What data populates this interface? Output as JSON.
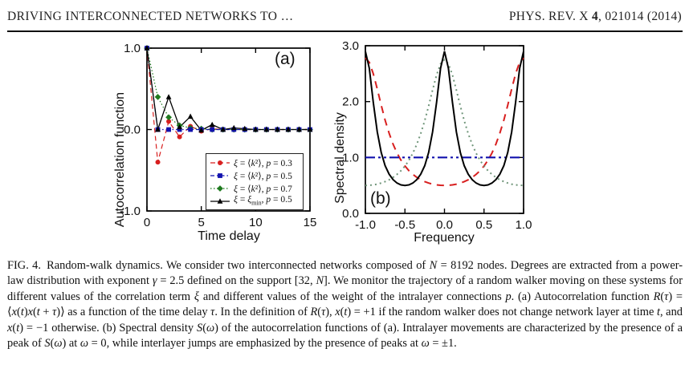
{
  "header": {
    "running_title": "DRIVING INTERCONNECTED NETWORKS TO …",
    "journal": {
      "pre": "PHYS. REV. X ",
      "volume": "4",
      "post": ", 021014 (2014)"
    }
  },
  "colors": {
    "red": "#d81f1f",
    "blue": "#1212ae",
    "green": "#1f7a1f",
    "green_dotted": "#6f9579",
    "black": "#000000"
  },
  "chart_data": [
    {
      "id": "autocorrelation",
      "type": "line",
      "panel_label": "(a)",
      "xlabel": "Time delay",
      "ylabel": "Autocorrelation function",
      "xlim": [
        0,
        15
      ],
      "ylim": [
        -1,
        1
      ],
      "grid": false,
      "legend_position": "bottom-right",
      "xticks": [
        {
          "v": 0,
          "l": "0"
        },
        {
          "v": 5,
          "l": "5"
        },
        {
          "v": 10,
          "l": "10"
        },
        {
          "v": 15,
          "l": "15"
        }
      ],
      "yticks": [
        {
          "v": -1,
          "l": "-1.0"
        },
        {
          "v": 0,
          "l": "0.0"
        },
        {
          "v": 1,
          "l": "1.0"
        }
      ],
      "x": [
        0,
        1,
        2,
        3,
        4,
        5,
        6,
        7,
        8,
        9,
        10,
        11,
        12,
        13,
        14,
        15
      ],
      "series": [
        {
          "name": "*ξ* = ⟨*k*²⟩, *p* = 0.3",
          "color_key": "red",
          "marker": "circle",
          "dash": "6 4",
          "width": 1.2,
          "values": [
            1.0,
            -0.4,
            0.1,
            -0.09,
            0.04,
            -0.02,
            0.01,
            0,
            0,
            0,
            0,
            0,
            0,
            0,
            0,
            0
          ]
        },
        {
          "name": "*ξ* = ⟨*k*²⟩, *p* = 0.5",
          "color_key": "blue",
          "marker": "square",
          "dash": "5 3 1.5 3",
          "width": 1.2,
          "values": [
            1.0,
            0,
            0,
            0,
            0,
            0,
            0,
            0,
            0,
            0,
            0,
            0,
            0,
            0,
            0,
            0
          ]
        },
        {
          "name": "*ξ* = ⟨*k*²⟩, *p* = 0.7",
          "color_key": "green",
          "marker": "diamond",
          "dash": "1.5 2.5",
          "width": 1.2,
          "values": [
            1.0,
            0.4,
            0.15,
            0.05,
            0.02,
            0.01,
            0,
            0,
            0,
            0,
            0,
            0,
            0,
            0,
            0,
            0
          ]
        },
        {
          "name": "*ξ* = *ξ*_min_, *p* = 0.5",
          "color_key": "black",
          "marker": "triangle",
          "dash": null,
          "width": 1.3,
          "values": [
            1.0,
            0.0,
            0.4,
            0.03,
            0.16,
            -0.01,
            0.06,
            0.0,
            0.02,
            0.01,
            0,
            0,
            0,
            0,
            0,
            0
          ]
        }
      ]
    },
    {
      "id": "spectral-density",
      "type": "line",
      "panel_label": "(b)",
      "xlabel": "Frequency",
      "ylabel": "Spectral density",
      "xlim": [
        -1,
        1
      ],
      "ylim": [
        0,
        3
      ],
      "grid": false,
      "xticks": [
        {
          "v": -1,
          "l": "-1.0"
        },
        {
          "v": -0.5,
          "l": "-0.5"
        },
        {
          "v": 0,
          "l": "0.0"
        },
        {
          "v": 0.5,
          "l": "0.5"
        },
        {
          "v": 1,
          "l": "1.0"
        }
      ],
      "yticks": [
        {
          "v": 0,
          "l": "0.0"
        },
        {
          "v": 1,
          "l": "1.0"
        },
        {
          "v": 2,
          "l": "2.0"
        },
        {
          "v": 3,
          "l": "3.0"
        }
      ],
      "x": [
        -1,
        -0.95,
        -0.9,
        -0.85,
        -0.8,
        -0.75,
        -0.7,
        -0.65,
        -0.6,
        -0.55,
        -0.5,
        -0.45,
        -0.4,
        -0.35,
        -0.3,
        -0.25,
        -0.2,
        -0.15,
        -0.1,
        -0.05,
        0,
        0.05,
        0.1,
        0.15,
        0.2,
        0.25,
        0.3,
        0.35,
        0.4,
        0.45,
        0.5,
        0.55,
        0.6,
        0.65,
        0.7,
        0.75,
        0.8,
        0.85,
        0.9,
        0.95,
        1
      ],
      "series": [
        {
          "name": "*ξ* = ⟨*k*²⟩, *p* = 0.3",
          "color_key": "red",
          "marker": null,
          "dash": "9 7",
          "width": 2,
          "values": [
            2.78,
            2.704,
            2.501,
            2.227,
            1.937,
            1.667,
            1.433,
            1.238,
            1.079,
            0.951,
            0.848,
            0.764,
            0.698,
            0.644,
            0.602,
            0.568,
            0.543,
            0.523,
            0.51,
            0.503,
            0.5,
            0.503,
            0.51,
            0.523,
            0.543,
            0.568,
            0.602,
            0.644,
            0.698,
            0.764,
            0.848,
            0.951,
            1.079,
            1.238,
            1.433,
            1.667,
            1.937,
            2.227,
            2.501,
            2.704,
            2.78
          ]
        },
        {
          "name": "*ξ* = ⟨*k*²⟩, *p* = 0.5",
          "color_key": "blue",
          "marker": null,
          "dash": "12 4 3 4 3 4",
          "width": 2.2,
          "values": [
            1,
            1,
            1,
            1,
            1,
            1,
            1,
            1,
            1,
            1,
            1,
            1,
            1,
            1,
            1,
            1,
            1,
            1,
            1,
            1,
            1,
            1,
            1,
            1,
            1,
            1,
            1,
            1,
            1,
            1,
            1,
            1,
            1,
            1,
            1,
            1,
            1,
            1,
            1,
            1,
            1
          ]
        },
        {
          "name": "*ξ* = ⟨*k*²⟩, *p* = 0.7",
          "color_key": "green_dotted",
          "marker": null,
          "dash": "2 4",
          "width": 2,
          "values": [
            0.5,
            0.503,
            0.51,
            0.523,
            0.542,
            0.568,
            0.601,
            0.644,
            0.697,
            0.763,
            0.846,
            0.949,
            1.076,
            1.234,
            1.427,
            1.658,
            1.923,
            2.208,
            2.477,
            2.676,
            2.75,
            2.676,
            2.477,
            2.208,
            1.923,
            1.658,
            1.427,
            1.234,
            1.076,
            0.949,
            0.846,
            0.763,
            0.697,
            0.644,
            0.601,
            0.568,
            0.542,
            0.523,
            0.51,
            0.503,
            0.5
          ]
        },
        {
          "name": "*ξ* = *ξ*_min_, *p* = 0.5",
          "color_key": "black",
          "marker": null,
          "dash": null,
          "width": 2,
          "values": [
            2.9,
            2.595,
            1.989,
            1.458,
            1.091,
            0.853,
            0.7,
            0.603,
            0.543,
            0.51,
            0.5,
            0.51,
            0.543,
            0.603,
            0.7,
            0.853,
            1.091,
            1.458,
            1.989,
            2.595,
            2.9,
            2.595,
            1.989,
            1.458,
            1.091,
            0.853,
            0.7,
            0.603,
            0.543,
            0.51,
            0.5,
            0.51,
            0.543,
            0.603,
            0.7,
            0.853,
            1.091,
            1.458,
            1.989,
            2.595,
            2.9
          ]
        }
      ]
    }
  ],
  "caption": "FIG. 4. Random-walk dynamics. We consider two interconnected networks composed of *N* = 8192 nodes. Degrees are extracted from a power-law distribution with exponent *γ* = 2.5 defined on the support [32, *N*]. We monitor the trajectory of a random walker moving on these systems for different values of the correlation term *ξ* and different values of the weight of the intralayer connections *p*. (a) Autocorrelation function *R*(*τ*) = ⟨*x*(*t*)*x*(*t* + *τ*)⟩ as a function of the time delay *τ*. In the definition of *R*(*τ*), *x*(*t*) = +1 if the random walker does not change network layer at time *t*, and *x*(*t*) = −1 otherwise. (b) Spectral density *S*(*ω*) of the autocorrelation functions of (a). Intralayer movements are characterized by the presence of a peak of *S*(*ω*) at *ω* = 0, while interlayer jumps are emphasized by the presence of peaks at *ω* = ±1."
}
